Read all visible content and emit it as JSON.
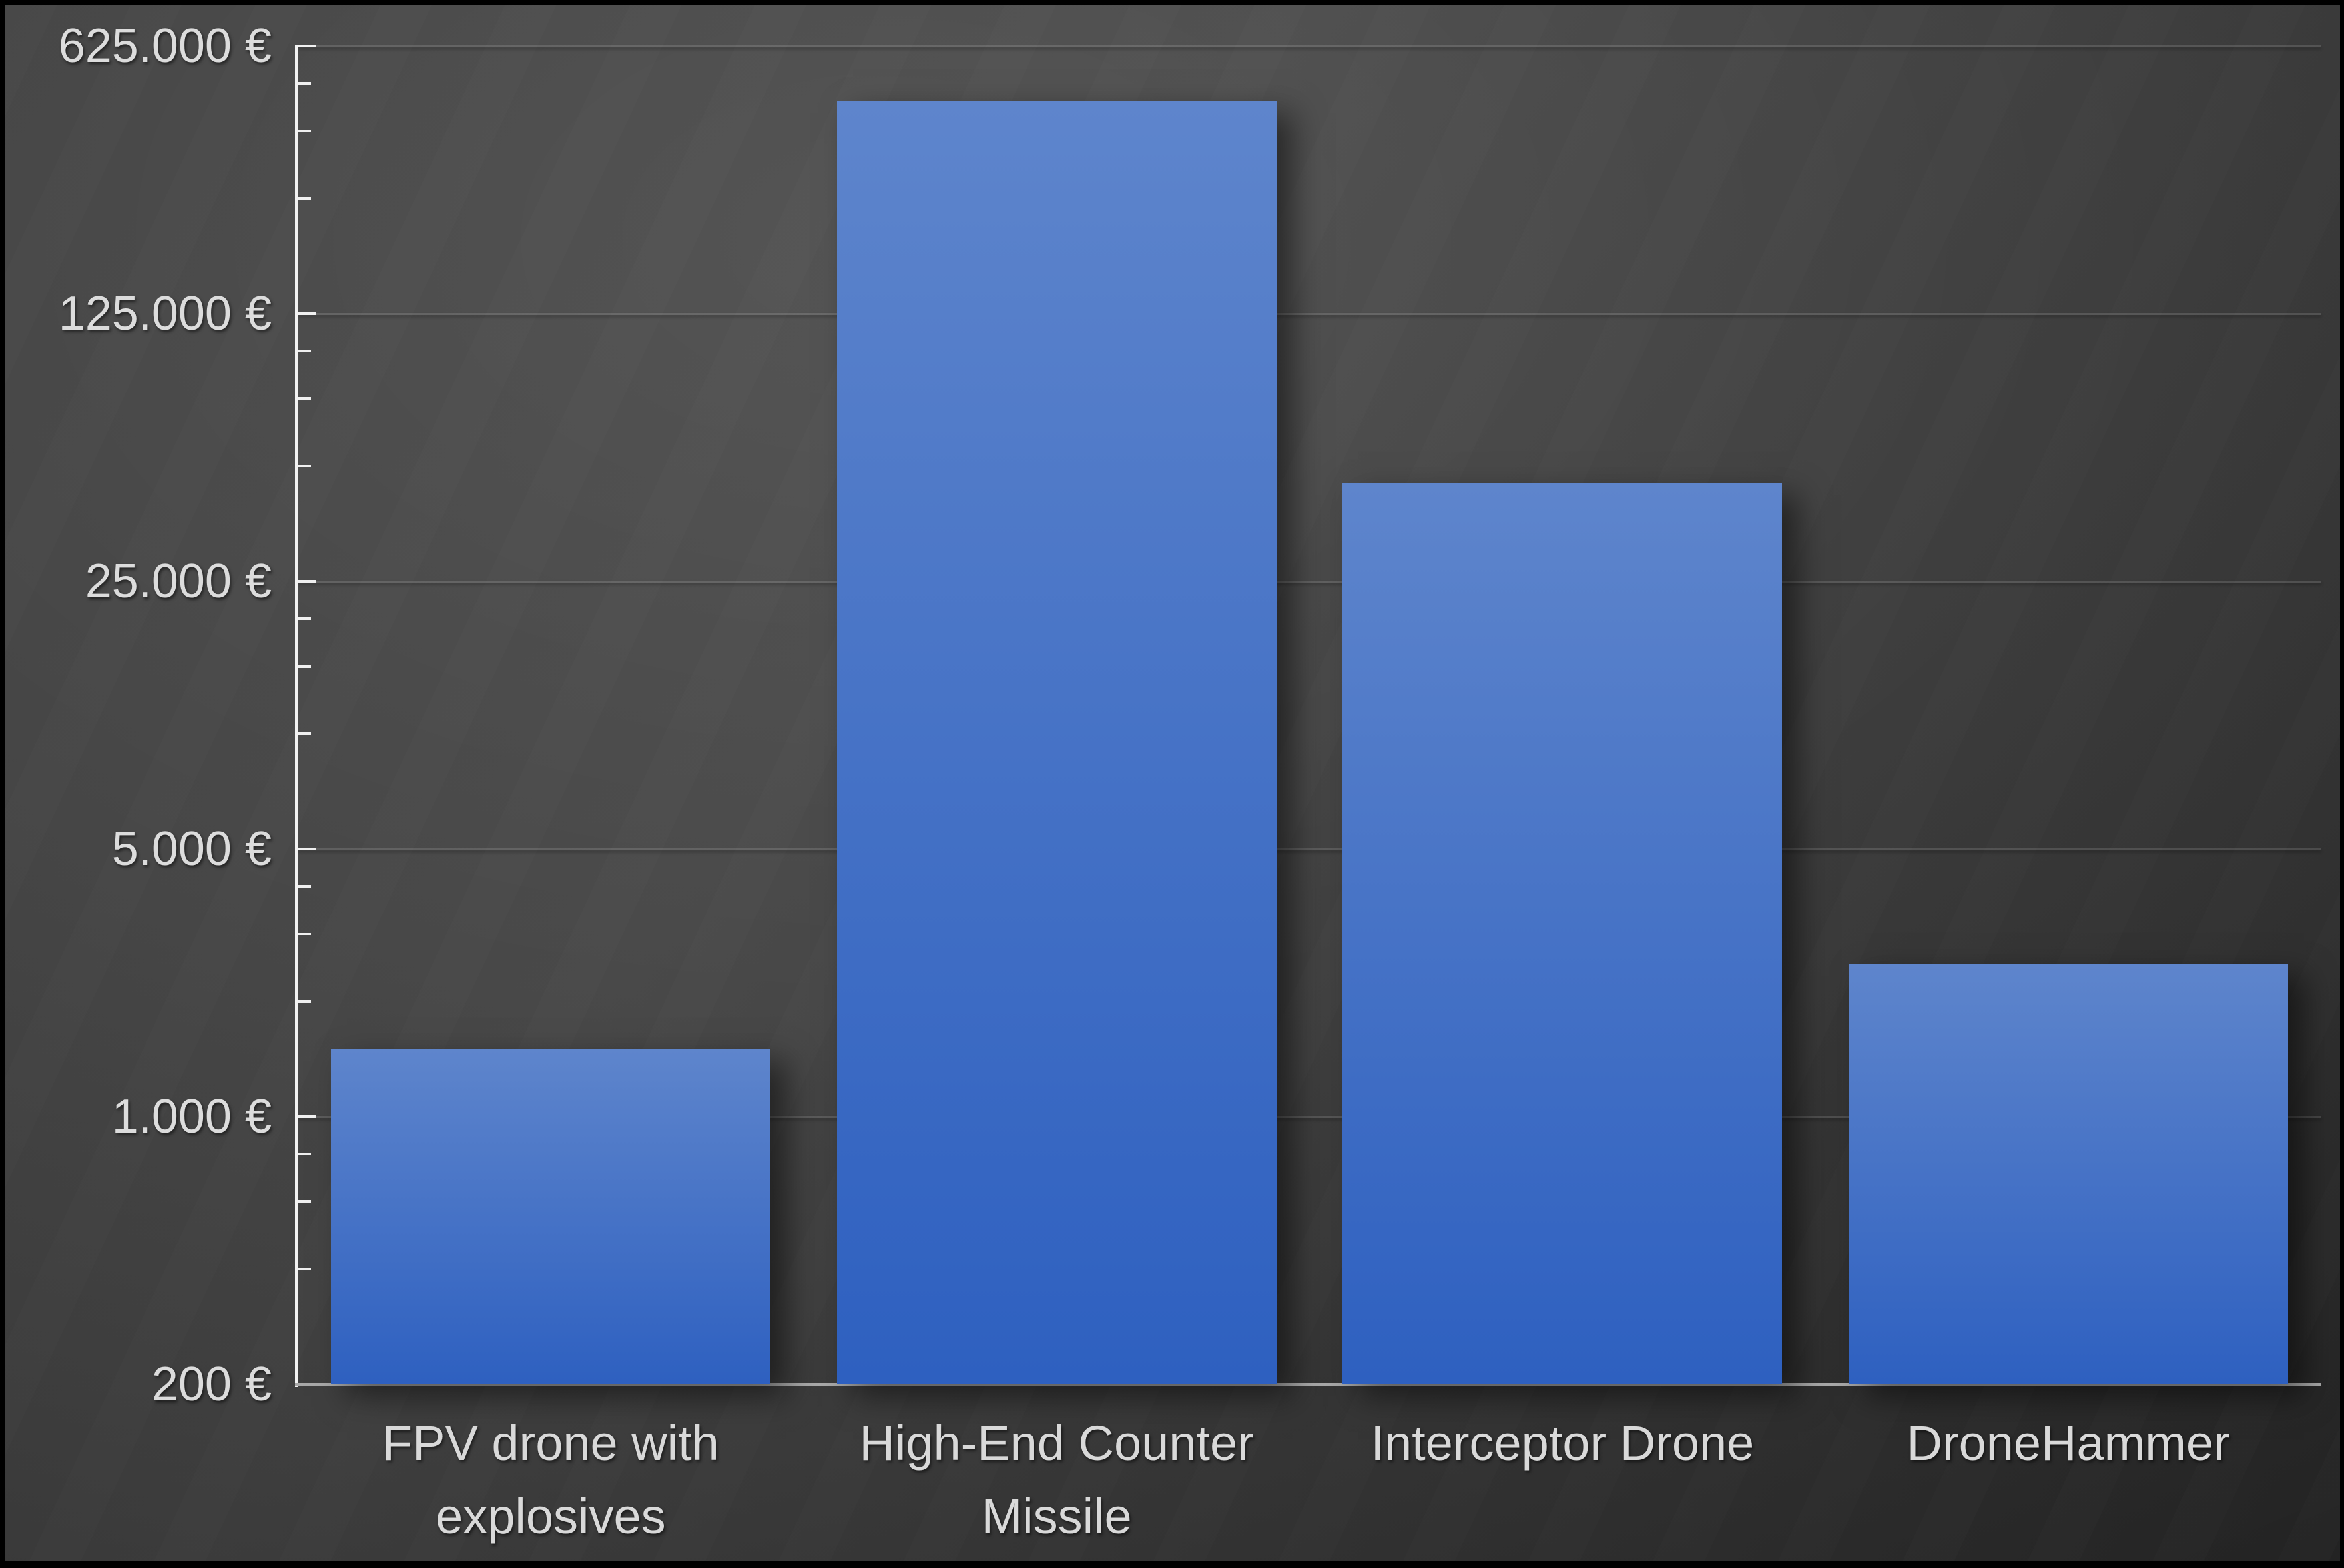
{
  "chart_data": {
    "type": "bar",
    "title": "",
    "categories": [
      "FPV drone with\nexplosives",
      "High-End Counter\nMissile",
      "Interceptor Drone",
      "DroneHammer"
    ],
    "values": [
      1500,
      450000,
      45000,
      2500
    ],
    "value_unit": "€",
    "xlabel": "",
    "ylabel": "",
    "y_scale": "log",
    "log_base": 5,
    "ylim": [
      200,
      625000
    ],
    "y_ticks": [
      200,
      1000,
      5000,
      25000,
      125000,
      625000
    ],
    "y_tick_labels": [
      "200 €",
      "1.000 €",
      "5.000 €",
      "25.000 €",
      "125.000 €",
      "625.000 €"
    ],
    "y_minor_tick_multipliers": [
      2,
      3,
      4
    ],
    "grid": "horizontal gridlines at major ticks only",
    "legend": "none"
  },
  "colors": {
    "background_light": "#474747",
    "background_dark": "#282828",
    "frame": "#000000",
    "bar_gradient_top": "#5e85cc",
    "bar_gradient_bottom": "#2e60c0",
    "axis": "#f2f2f2",
    "gridline": "#4f4f4f",
    "baseline": "#a9a9a9",
    "label_text": "#d9d9d9"
  }
}
